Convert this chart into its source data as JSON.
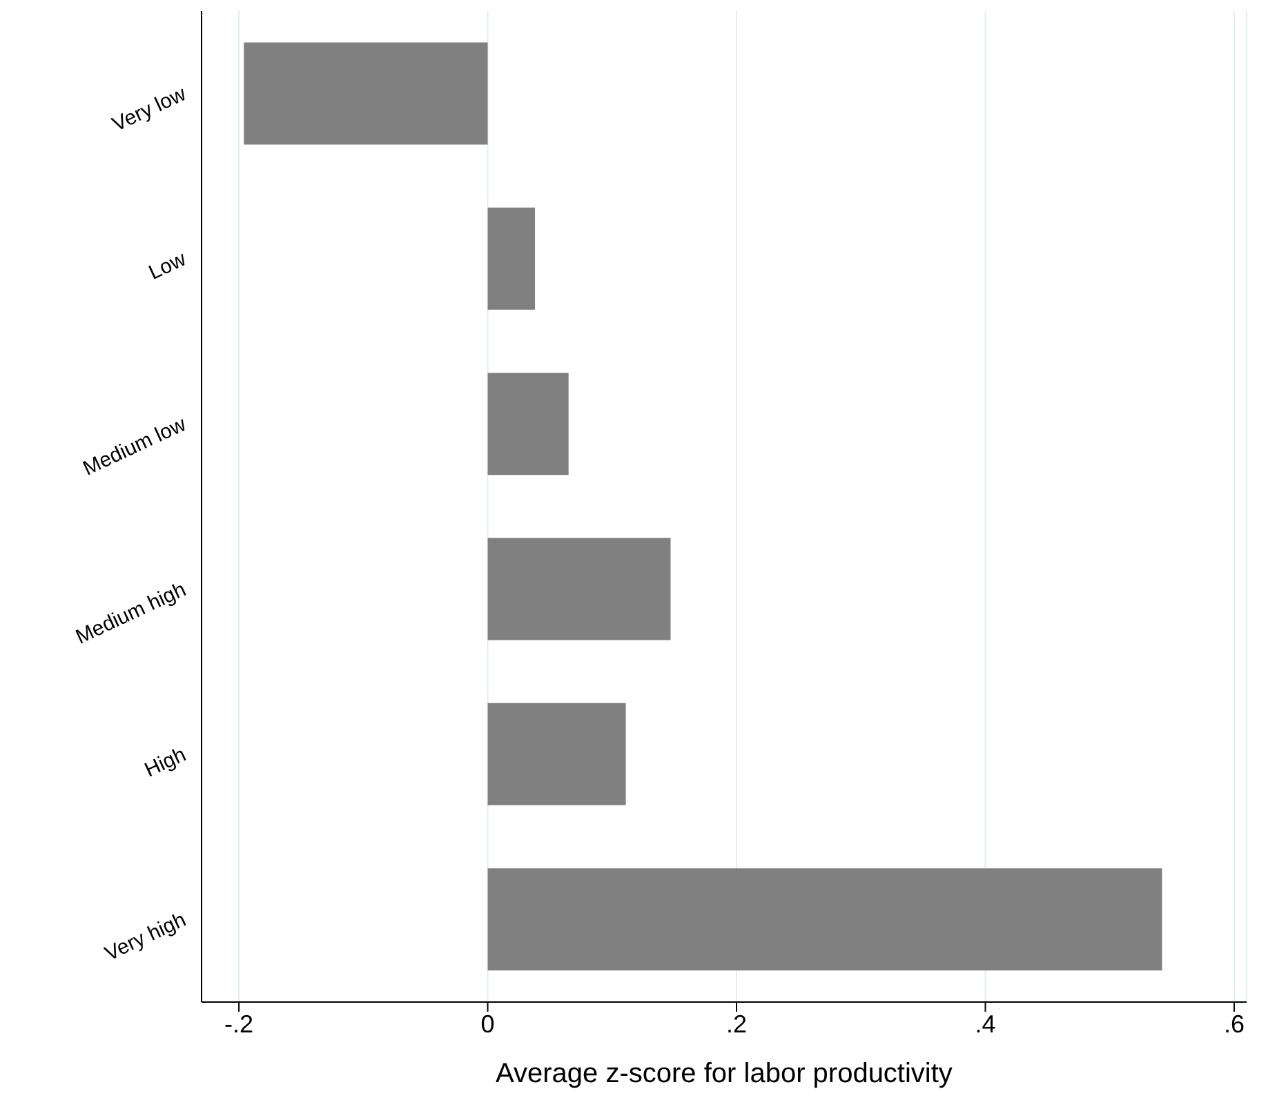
{
  "chart_data": {
    "type": "bar",
    "orientation": "horizontal",
    "xlabel": "Average z-score for labor productivity",
    "categories": [
      "Very low",
      "Low",
      "Medium low",
      "Medium high",
      "High",
      "Very high"
    ],
    "values": [
      -0.196,
      0.038,
      0.065,
      0.147,
      0.111,
      0.542
    ],
    "color": "#808080",
    "xlim": [
      -0.23,
      0.61
    ],
    "xticks": [
      {
        "value": -0.2,
        "label": "-.2"
      },
      {
        "value": 0,
        "label": "0"
      },
      {
        "value": 0.2,
        "label": ".2"
      },
      {
        "value": 0.4,
        "label": ".4"
      },
      {
        "value": 0.6,
        "label": ".6"
      }
    ],
    "grid": "x"
  }
}
